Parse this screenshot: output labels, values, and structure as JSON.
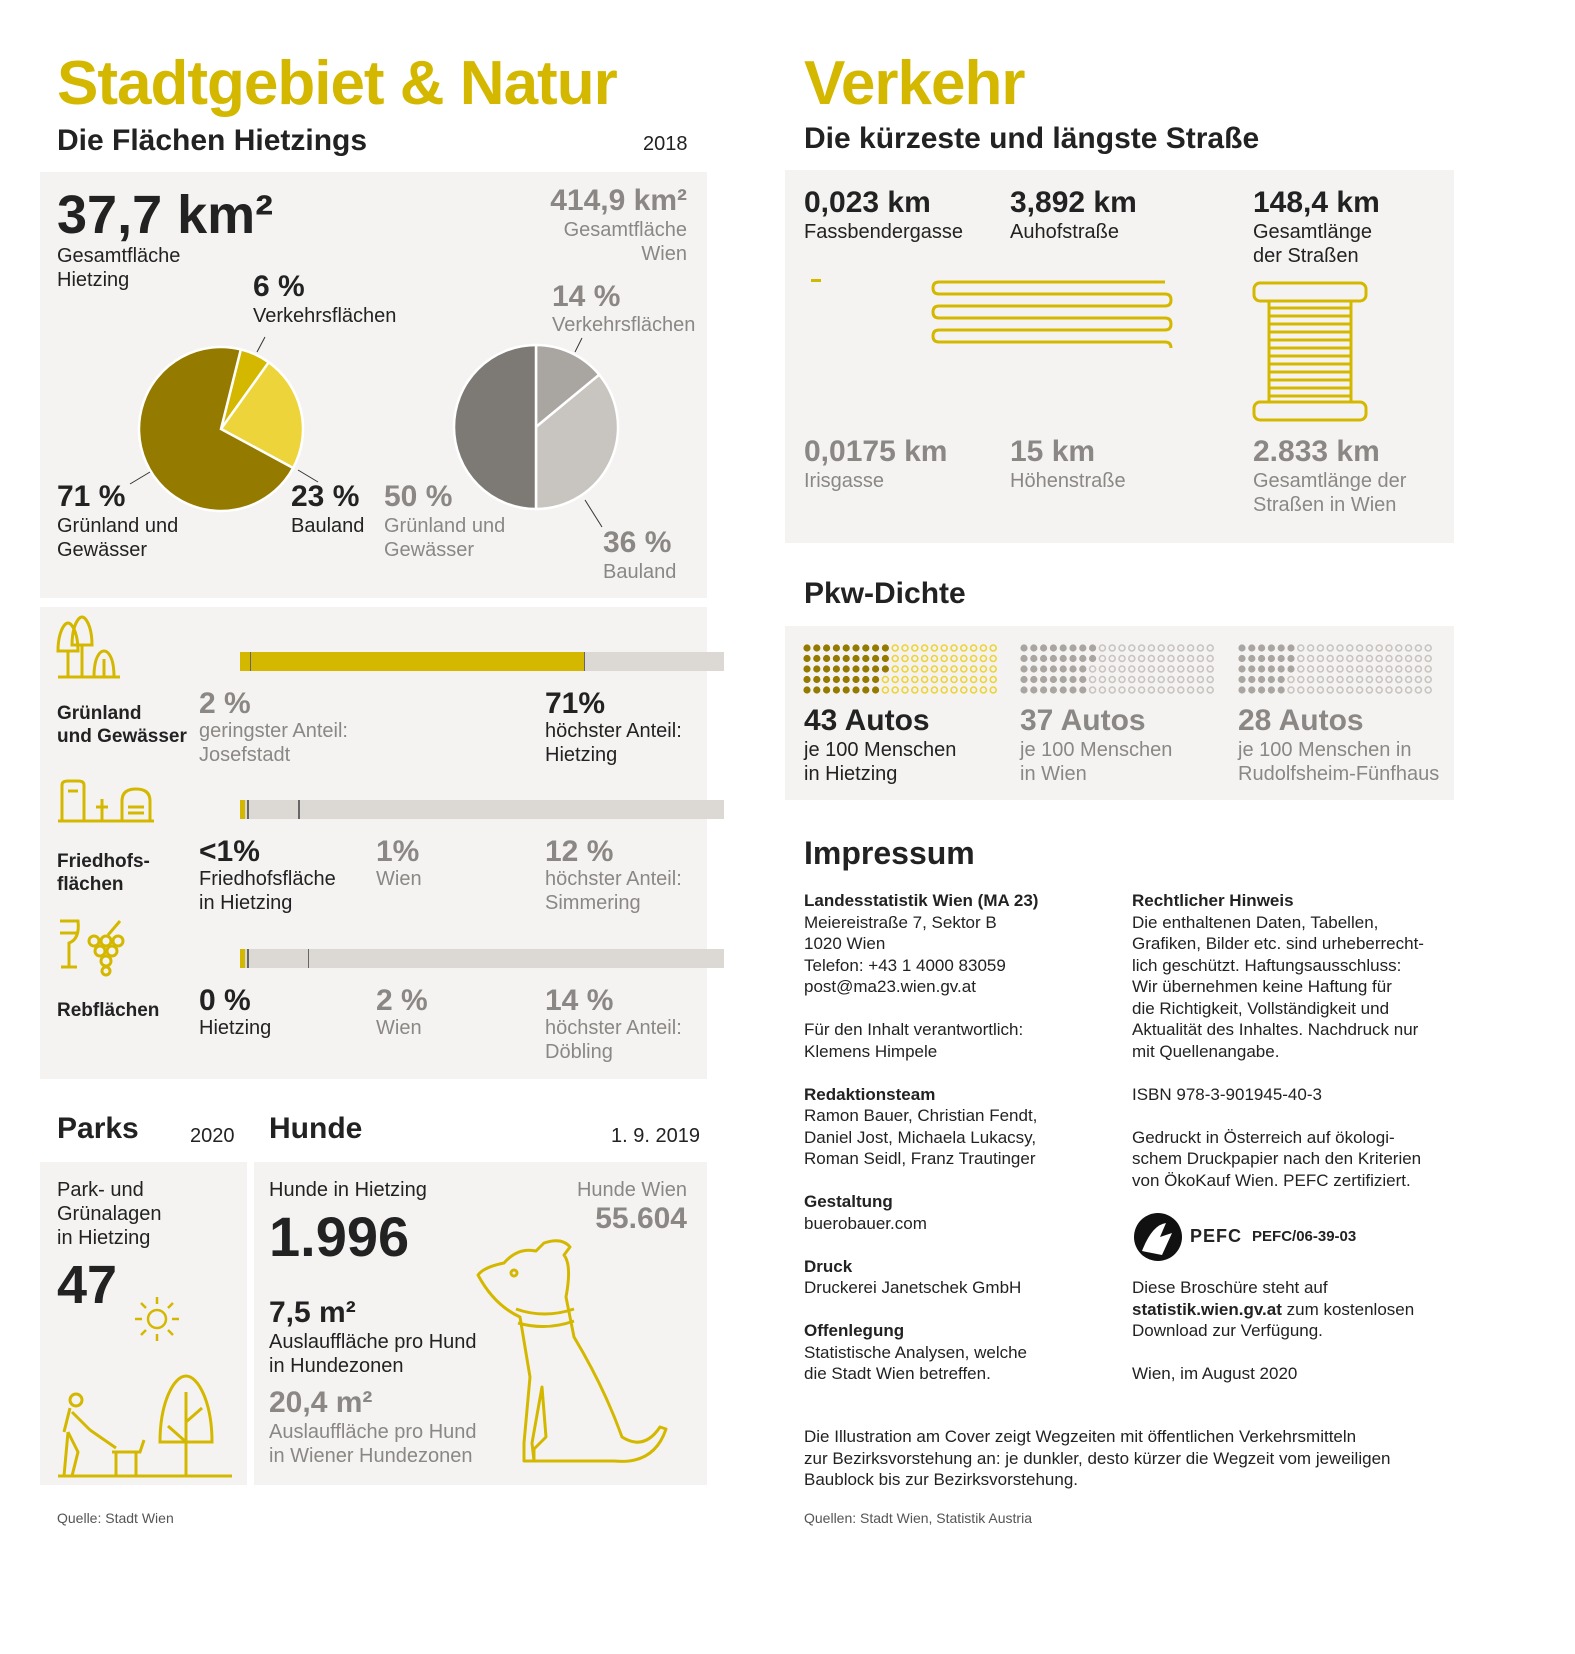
{
  "left": {
    "title": "Stadtgebiet & Natur",
    "subtitle": "Die Flächen Hietzings",
    "year": "2018",
    "area": {
      "hietzing_value": "37,7 km²",
      "hietzing_label1": "Gesamtfläche",
      "hietzing_label2": "Hietzing",
      "wien_value": "414,9 km²",
      "wien_label1": "Gesamtfläche",
      "wien_label2": "Wien"
    },
    "pie_hietzing": {
      "verkehr_pct": "6 %",
      "verkehr_label": "Verkehrsflächen",
      "gruen_pct": "71 %",
      "gruen_label1": "Grünland und",
      "gruen_label2": "Gewässer",
      "bau_pct": "23 %",
      "bau_label": "Bauland"
    },
    "pie_wien": {
      "verkehr_pct": "14 %",
      "verkehr_label": "Verkehrsflächen",
      "gruen_pct": "50 %",
      "gruen_label1": "Grünland und",
      "gruen_label2": "Gewässer",
      "bau_pct": "36 %",
      "bau_label": "Bauland"
    },
    "rows": [
      {
        "label1": "Grünland",
        "label2": "und Gewässer",
        "c1_value": "2 %",
        "c1_l1": "geringster Anteil:",
        "c1_l2": "Josefstadt",
        "c3_value": "71%",
        "c3_l1": "höchster Anteil:",
        "c3_l2": "Hietzing",
        "fill_pct": 71,
        "markers": [
          2,
          71
        ]
      },
      {
        "label1": "Friedhofs-",
        "label2": "flächen",
        "c1_value": "<1%",
        "c1_l1": "Friedhofsfläche",
        "c1_l2": "in Hietzing",
        "c2_value": "1%",
        "c2_l1": "Wien",
        "c3_value": "12 %",
        "c3_l1": "höchster Anteil:",
        "c3_l2": "Simmering",
        "fill_pct": 1,
        "markers": [
          1.5,
          12
        ]
      },
      {
        "label1": "Rebflächen",
        "c1_value": "0 %",
        "c1_l1": "Hietzing",
        "c2_value": "2 %",
        "c2_l1": "Wien",
        "c3_value": "14 %",
        "c3_l1": "höchster Anteil:",
        "c3_l2": "Döbling",
        "fill_pct": 1,
        "markers": [
          1.5,
          14
        ]
      }
    ],
    "parks": {
      "title": "Parks",
      "year": "2020",
      "l1": "Park- und",
      "l2": "Grünalagen",
      "l3": "in Hietzing",
      "value": "47"
    },
    "hunde": {
      "title": "Hunde",
      "date": "1. 9. 2019",
      "hietzing_label": "Hunde in Hietzing",
      "hietzing_value": "1.996",
      "wien_label": "Hunde Wien",
      "wien_value": "55.604",
      "a1_value": "7,5 m²",
      "a1_l1": "Auslauffläche pro Hund",
      "a1_l2": "in Hundezonen",
      "a2_value": "20,4 m²",
      "a2_l1": "Auslauffläche pro Hund",
      "a2_l2": "in Wiener Hundezonen"
    },
    "source": "Quelle: Stadt Wien"
  },
  "right": {
    "title": "Verkehr",
    "subtitle": "Die kürzeste und längste Straße",
    "streets": [
      {
        "value": "0,023 km",
        "l1": "Fassbendergasse"
      },
      {
        "value": "3,892 km",
        "l1": "Auhofstraße"
      },
      {
        "value": "148,4 km",
        "l1": "Gesamtlänge",
        "l2": "der Straßen"
      },
      {
        "value": "0,0175 km",
        "l1": "Irisgasse"
      },
      {
        "value": "15 km",
        "l1": "Höhenstraße"
      },
      {
        "value": "2.833 km",
        "l1": "Gesamtlänge der",
        "l2": "Straßen in Wien"
      }
    ],
    "pkw": {
      "title": "Pkw-Dichte",
      "items": [
        {
          "value": "43 Autos",
          "l1": "je 100 Menschen",
          "l2": "in Hietzing",
          "count": 43
        },
        {
          "value": "37 Autos",
          "l1": "je 100 Menschen",
          "l2": "in Wien",
          "count": 37
        },
        {
          "value": "28 Autos",
          "l1": "je 100 Menschen in",
          "l2": "Rudolfsheim-Fünfhaus",
          "count": 28
        }
      ]
    },
    "impressum": {
      "title": "Impressum",
      "col1": [
        {
          "head": "Landesstatistik Wien (MA 23)",
          "lines": [
            "Meiereistraße 7, Sektor B",
            "1020 Wien",
            "Telefon: +43 1 4000 83059",
            "post@ma23.wien.gv.at",
            "",
            "Für den Inhalt verantwortlich:",
            "Klemens Himpele"
          ]
        },
        {
          "head": "Redaktionsteam",
          "lines": [
            "Ramon Bauer, Christian Fendt,",
            "Daniel Jost, Michaela Lukacsy,",
            "Roman Seidl, Franz Trautinger"
          ]
        },
        {
          "head": "Gestaltung",
          "lines": [
            "buerobauer.com"
          ]
        },
        {
          "head": "Druck",
          "lines": [
            "Druckerei Janetschek GmbH"
          ]
        },
        {
          "head": "Offenlegung",
          "lines": [
            "Statistische Analysen, welche",
            "die Stadt Wien betreffen."
          ]
        }
      ],
      "col2_head": "Rechtlicher Hinweis",
      "col2_lines": [
        "Die enthaltenen Daten, Tabellen,",
        "Grafiken, Bilder etc. sind urheberrecht-",
        "lich geschützt. Haftungsausschluss:",
        "Wir übernehmen keine Haftung für",
        "die Richtigkeit, Vollständigkeit und",
        "Aktualität des Inhaltes. Nachdruck nur",
        "mit Quellenangabe.",
        "",
        "ISBN 978-3-901945-40-3",
        "",
        "Gedruckt in Österreich auf ökologi-",
        "schem Druckpapier nach den Kriterien",
        "von ÖkoKauf Wien. PEFC zertifiziert."
      ],
      "pefc_logo": "PEFC",
      "pefc_code": "PEFC/06-39-03",
      "download_l1": "Diese Broschüre steht auf",
      "download_link": "statistik.wien.gv.at",
      "download_l2": " zum kostenlosen",
      "download_l3": "Download zur Verfügung.",
      "date": "Wien, im August 2020"
    },
    "cover_note": [
      "Die Illustration am Cover zeigt Wegzeiten mit öffentlichen Verkehrsmitteln",
      "zur Bezirksvorstehung an: je dunkler, desto kürzer die Wegzeit vom jeweiligen",
      "Baublock bis zur Bezirksvorstehung."
    ],
    "source": "Quellen: Stadt Wien, Statistik Austria"
  },
  "colors": {
    "yellow": "#d4b800",
    "olive": "#957a00",
    "light_yellow": "#ecd43a",
    "panel": "#f5f3f2",
    "dark_grey": "#7d7a76",
    "mid_grey": "#a9a5a1",
    "light_grey": "#c8c4c0"
  },
  "chart_data": [
    {
      "type": "pie",
      "title": "Hietzing",
      "categories": [
        "Verkehrsflächen",
        "Bauland",
        "Grünland und Gewässer"
      ],
      "values": [
        6,
        23,
        71
      ]
    },
    {
      "type": "pie",
      "title": "Wien",
      "categories": [
        "Verkehrsflächen",
        "Bauland",
        "Grünland und Gewässer"
      ],
      "values": [
        14,
        36,
        50
      ]
    }
  ]
}
